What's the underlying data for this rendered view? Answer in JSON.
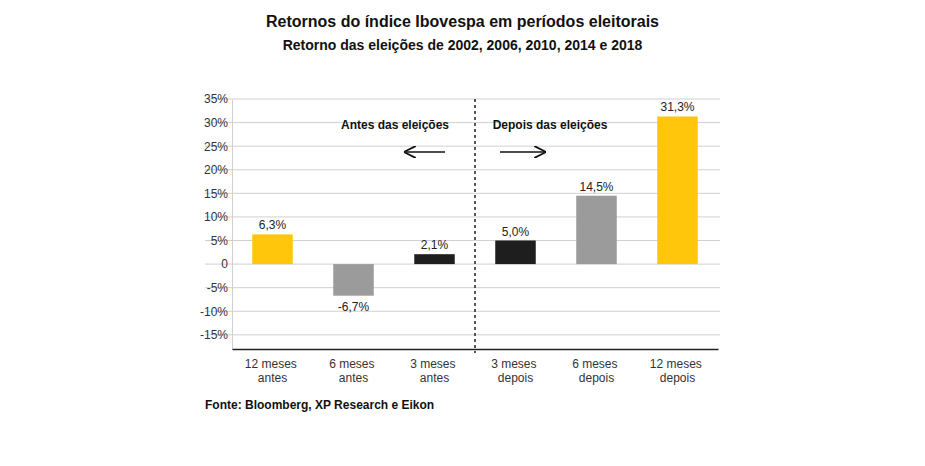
{
  "chart_data": {
    "type": "bar",
    "title": "Retornos do índice Ibovespa em períodos eleitorais",
    "subtitle": "Retorno das eleições de 2002, 2006, 2010, 2014 e 2018",
    "categories": [
      "12 meses antes",
      "6 meses antes",
      "3 meses antes",
      "3 meses depois",
      "6 meses depois",
      "12 meses depois"
    ],
    "values": [
      6.3,
      -6.7,
      2.1,
      5.0,
      14.5,
      31.3
    ],
    "value_labels": [
      "6,3%",
      "-6,7%",
      "2,1%",
      "5,0%",
      "14,5%",
      "31,3%"
    ],
    "colors": [
      "#ffc60b",
      "#9b9b9b",
      "#1e1e1e",
      "#1e1e1e",
      "#9b9b9b",
      "#ffc60b"
    ],
    "ylim": [
      -18,
      35
    ],
    "yticks": [
      {
        "value": 35,
        "label": "35%"
      },
      {
        "value": 30,
        "label": "30%"
      },
      {
        "value": 25,
        "label": "25%"
      },
      {
        "value": 20,
        "label": "20%"
      },
      {
        "value": 15,
        "label": "15%"
      },
      {
        "value": 10,
        "label": "10%"
      },
      {
        "value": 5,
        "label": "5%"
      },
      0,
      {
        "value": -5,
        "label": "-5%"
      },
      {
        "value": -10,
        "label": "-10%"
      },
      {
        "value": -15,
        "label": "-15%"
      }
    ],
    "grid": true,
    "data_labels": true,
    "annotations": [
      "Antes das eleições",
      "Depois das eleições"
    ],
    "source": "Fonte: Bloomberg, XP Research e Eikon"
  }
}
